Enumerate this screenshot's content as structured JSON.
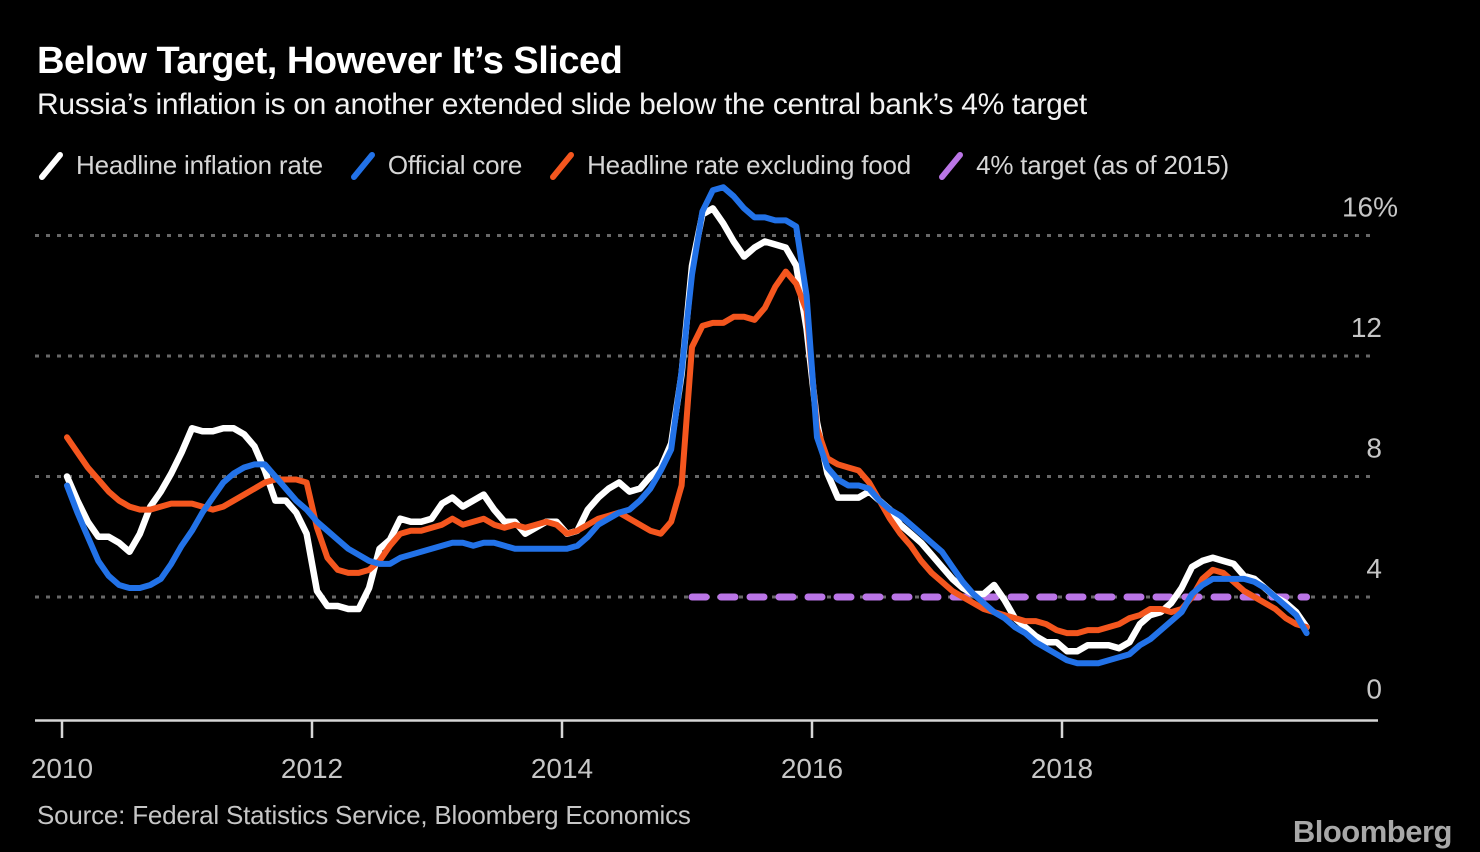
{
  "header": {
    "title": "Below Target, However It’s Sliced",
    "subtitle": "Russia’s inflation is on another extended slide below the central bank’s 4% target"
  },
  "legend": {
    "items": [
      {
        "label": "Headline inflation rate",
        "color": "#ffffff"
      },
      {
        "label": "Official core",
        "color": "#2272e8"
      },
      {
        "label": "Headline rate excluding food",
        "color": "#f4561e"
      },
      {
        "label": "4% target (as of 2015)",
        "color": "#ba75e6"
      }
    ]
  },
  "chart_data": {
    "type": "line",
    "title": "Below Target, However It’s Sliced",
    "x_unit": "monthly, Jan 2010 – Dec 2019",
    "x_tick_labels": [
      "2010",
      "2012",
      "2014",
      "2016",
      "2018"
    ],
    "y_ticks": [
      {
        "value": 16,
        "label": "16%"
      },
      {
        "value": 12,
        "label": "12"
      },
      {
        "value": 8,
        "label": "8"
      },
      {
        "value": 4,
        "label": "4"
      },
      {
        "value": 0,
        "label": "0"
      }
    ],
    "ylim": [
      0,
      18
    ],
    "grid": "horizontal dotted",
    "legend_position": "top",
    "colors": {
      "background": "#000000",
      "gridline": "#686868",
      "axis": "#d6d6d6",
      "axis_labels": "#c6c6c6"
    },
    "series": [
      {
        "name": "Headline inflation rate",
        "color": "#ffffff",
        "style": "solid",
        "values": [
          8.0,
          7.2,
          6.5,
          6.0,
          6.0,
          5.8,
          5.5,
          6.1,
          7.0,
          7.5,
          8.1,
          8.8,
          9.6,
          9.5,
          9.5,
          9.6,
          9.6,
          9.4,
          9.0,
          8.2,
          7.2,
          7.2,
          6.8,
          6.1,
          4.2,
          3.7,
          3.7,
          3.6,
          3.6,
          4.3,
          5.6,
          5.9,
          6.6,
          6.5,
          6.5,
          6.6,
          7.1,
          7.3,
          7.0,
          7.2,
          7.4,
          6.9,
          6.5,
          6.5,
          6.1,
          6.3,
          6.5,
          6.5,
          6.1,
          6.2,
          6.9,
          7.3,
          7.6,
          7.8,
          7.5,
          7.6,
          8.0,
          8.3,
          9.1,
          11.4,
          15.0,
          16.7,
          16.9,
          16.4,
          15.8,
          15.3,
          15.6,
          15.8,
          15.7,
          15.6,
          15.0,
          12.9,
          9.8,
          8.1,
          7.3,
          7.3,
          7.3,
          7.5,
          7.2,
          6.9,
          6.4,
          6.1,
          5.8,
          5.4,
          5.0,
          4.6,
          4.3,
          4.1,
          4.1,
          4.4,
          3.9,
          3.3,
          3.0,
          2.7,
          2.5,
          2.5,
          2.2,
          2.2,
          2.4,
          2.4,
          2.4,
          2.3,
          2.5,
          3.1,
          3.4,
          3.5,
          3.8,
          4.3,
          5.0,
          5.2,
          5.3,
          5.2,
          5.1,
          4.7,
          4.6,
          4.3,
          4.0,
          3.8,
          3.5,
          3.0
        ]
      },
      {
        "name": "Official core",
        "color": "#2272e8",
        "style": "solid",
        "values": [
          7.7,
          6.8,
          6.0,
          5.2,
          4.7,
          4.4,
          4.3,
          4.3,
          4.4,
          4.6,
          5.1,
          5.7,
          6.2,
          6.8,
          7.3,
          7.8,
          8.1,
          8.3,
          8.4,
          8.4,
          8.0,
          7.6,
          7.2,
          6.9,
          6.5,
          6.2,
          5.9,
          5.6,
          5.4,
          5.2,
          5.1,
          5.1,
          5.3,
          5.4,
          5.5,
          5.6,
          5.7,
          5.8,
          5.8,
          5.7,
          5.8,
          5.8,
          5.7,
          5.6,
          5.6,
          5.6,
          5.6,
          5.6,
          5.6,
          5.7,
          6.0,
          6.4,
          6.6,
          6.8,
          6.9,
          7.2,
          7.6,
          8.2,
          8.9,
          11.5,
          14.7,
          16.8,
          17.5,
          17.6,
          17.3,
          16.9,
          16.6,
          16.6,
          16.5,
          16.5,
          16.3,
          14.0,
          9.3,
          8.3,
          7.9,
          7.7,
          7.7,
          7.6,
          7.2,
          6.9,
          6.7,
          6.4,
          6.1,
          5.8,
          5.5,
          5.0,
          4.5,
          4.1,
          3.8,
          3.5,
          3.3,
          3.0,
          2.8,
          2.5,
          2.3,
          2.1,
          1.9,
          1.8,
          1.8,
          1.8,
          1.9,
          2.0,
          2.1,
          2.4,
          2.6,
          2.9,
          3.2,
          3.5,
          4.1,
          4.4,
          4.6,
          4.6,
          4.6,
          4.6,
          4.5,
          4.3,
          4.0,
          3.7,
          3.4,
          2.8
        ]
      },
      {
        "name": "Headline rate excluding food",
        "color": "#f4561e",
        "style": "solid",
        "values": [
          9.3,
          8.8,
          8.3,
          7.9,
          7.5,
          7.2,
          7.0,
          6.9,
          6.9,
          7.0,
          7.1,
          7.1,
          7.1,
          7.0,
          6.9,
          7.0,
          7.2,
          7.4,
          7.6,
          7.8,
          7.9,
          7.9,
          7.9,
          7.8,
          6.3,
          5.3,
          4.9,
          4.8,
          4.8,
          4.9,
          5.2,
          5.7,
          6.1,
          6.2,
          6.2,
          6.3,
          6.4,
          6.6,
          6.4,
          6.5,
          6.6,
          6.4,
          6.3,
          6.4,
          6.3,
          6.4,
          6.5,
          6.4,
          6.1,
          6.2,
          6.4,
          6.6,
          6.7,
          6.8,
          6.6,
          6.4,
          6.2,
          6.1,
          6.5,
          7.7,
          12.3,
          13.0,
          13.1,
          13.1,
          13.3,
          13.3,
          13.2,
          13.6,
          14.3,
          14.8,
          14.4,
          13.5,
          9.6,
          8.6,
          8.4,
          8.3,
          8.2,
          7.8,
          7.2,
          6.6,
          6.1,
          5.7,
          5.2,
          4.8,
          4.5,
          4.2,
          4.0,
          3.8,
          3.6,
          3.5,
          3.4,
          3.3,
          3.2,
          3.2,
          3.1,
          2.9,
          2.8,
          2.8,
          2.9,
          2.9,
          3.0,
          3.1,
          3.3,
          3.4,
          3.6,
          3.6,
          3.5,
          3.6,
          4.0,
          4.6,
          4.9,
          4.8,
          4.5,
          4.2,
          4.0,
          3.8,
          3.6,
          3.3,
          3.1,
          3.0
        ]
      },
      {
        "name": "4% target (as of 2015)",
        "color": "#ba75e6",
        "style": "dashed",
        "constant_value": 4.0,
        "start_month_index": 60,
        "end_month_index": 119
      }
    ]
  },
  "footer": {
    "source": "Source: Federal Statistics Service, Bloomberg Economics",
    "brand": "Bloomberg"
  }
}
